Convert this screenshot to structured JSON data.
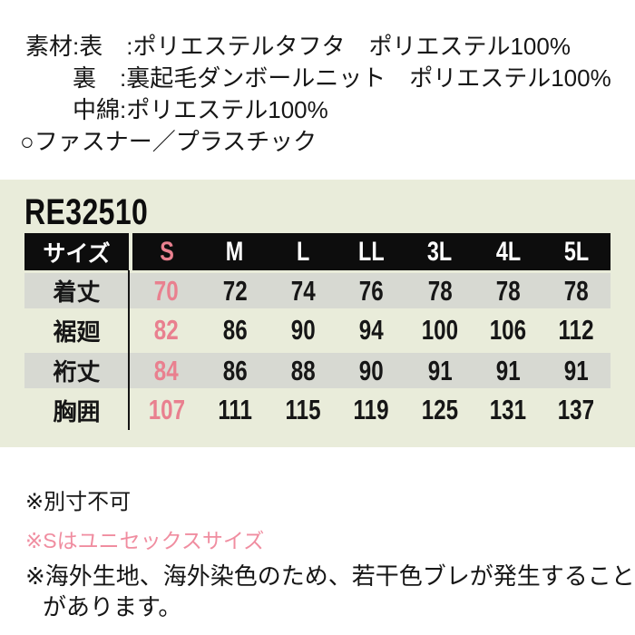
{
  "materials": {
    "label": "素材:",
    "rows": [
      {
        "sub": "表",
        "value": ":ポリエステルタフタ　ポリエステル100%"
      },
      {
        "sub": "裏",
        "value": ":裏起毛ダンボールニット　ポリエステル100%"
      },
      {
        "sub": "中綿",
        "value": ":ポリエステル100%"
      }
    ],
    "fastener_note": "○ファスナー／プラスチック"
  },
  "product": {
    "code": "RE32510"
  },
  "size_table": {
    "type": "table",
    "header": [
      "サイズ",
      "S",
      "M",
      "L",
      "LL",
      "3L",
      "4L",
      "5L"
    ],
    "rows": [
      {
        "label": "着丈",
        "values": [
          "70",
          "72",
          "74",
          "76",
          "78",
          "78",
          "78"
        ]
      },
      {
        "label": "裾廻",
        "values": [
          "82",
          "86",
          "90",
          "94",
          "100",
          "106",
          "112"
        ]
      },
      {
        "label": "裄丈",
        "values": [
          "84",
          "86",
          "88",
          "90",
          "91",
          "91",
          "91"
        ]
      },
      {
        "label": "胸囲",
        "values": [
          "107",
          "111",
          "115",
          "119",
          "125",
          "131",
          "137"
        ]
      }
    ],
    "highlighted_column": "S"
  },
  "notes": {
    "line1": "※別寸不可",
    "line2": "※Sはユニセックスサイズ",
    "line3a": "※海外生地、海外染色のため、若干色ブレが発生すること",
    "line3b": "があります。"
  },
  "colors": {
    "panel_background": "#e9ecda",
    "gray_band": "#d7d9d2",
    "header_black": "#0d0d0d",
    "accent_pink": "#e9808f",
    "note_pink": "#f08da0",
    "text": "#161616",
    "page_background": "#ffffff"
  }
}
